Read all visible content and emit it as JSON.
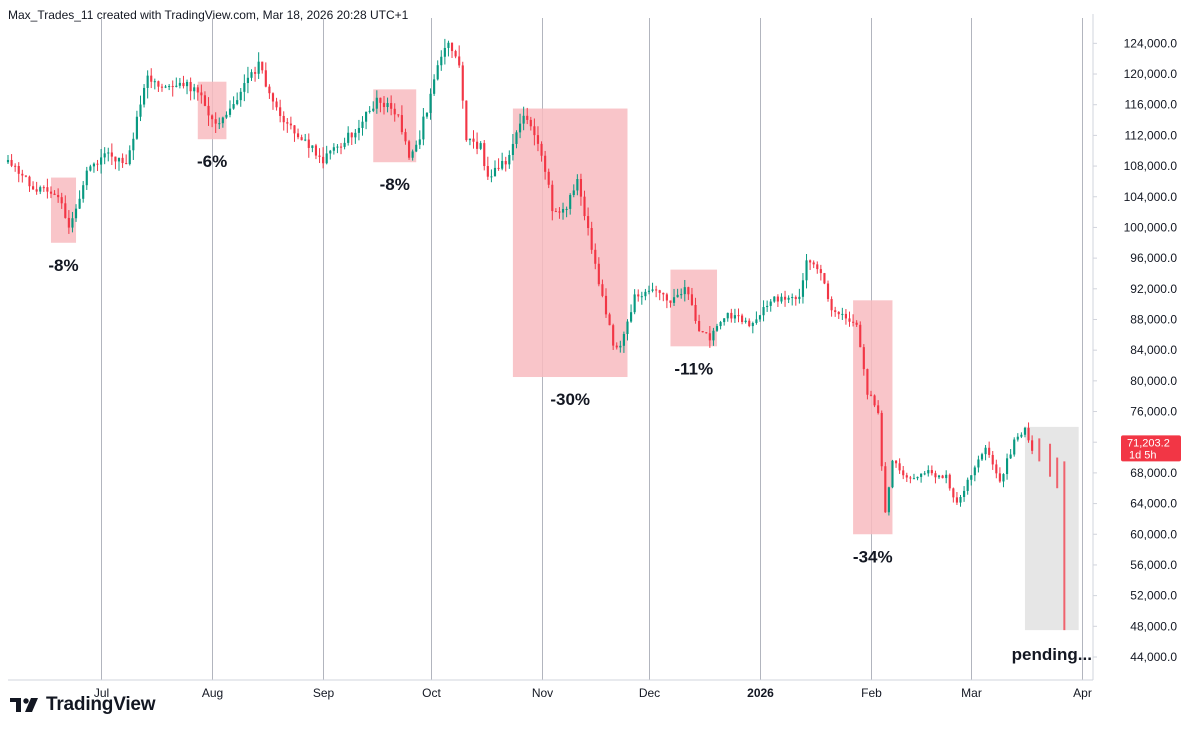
{
  "header": {
    "attribution": "Max_Trades_11 created with TradingView.com, Mar 18, 2026 20:28 UTC+1"
  },
  "brand": {
    "name": "TradingView",
    "logo_icon": "tradingview-logo-icon"
  },
  "price_tag": {
    "price": "71,203.2",
    "countdown": "1d 5h",
    "color": "#f23645"
  },
  "colors": {
    "up": "#089981",
    "down": "#f23645",
    "zone": "#f8bbc0",
    "pending_zone": "#e3e3e3",
    "grid": "#b2b5be"
  },
  "chart_data": {
    "type": "candlestick",
    "title": "",
    "y_axis": {
      "min": 41000,
      "max": 126000,
      "ticks": [
        44000,
        48000,
        52000,
        56000,
        60000,
        64000,
        68000,
        72000,
        76000,
        80000,
        84000,
        88000,
        92000,
        96000,
        100000,
        104000,
        108000,
        112000,
        116000,
        120000,
        124000
      ],
      "tick_labels": [
        "44,000.0",
        "48,000.0",
        "52,000.0",
        "56,000.0",
        "60,000.0",
        "64,000.0",
        "68,000.0",
        "72,000.0",
        "76,000.0",
        "80,000.0",
        "84,000.0",
        "88,000.0",
        "92,000.0",
        "96,000.0",
        "100,000.0",
        "104,000.0",
        "108,000.0",
        "112,000.0",
        "116,000.0",
        "120,000.0",
        "124,000.0"
      ]
    },
    "x_axis": {
      "start": "2025-06-05",
      "end": "2026-04-04",
      "ticks": [
        {
          "label": "Jul",
          "date": "2025-07-01",
          "bold": false
        },
        {
          "label": "Aug",
          "date": "2025-08-01",
          "bold": false
        },
        {
          "label": "Sep",
          "date": "2025-09-01",
          "bold": false
        },
        {
          "label": "Oct",
          "date": "2025-10-01",
          "bold": false
        },
        {
          "label": "Nov",
          "date": "2025-11-01",
          "bold": false
        },
        {
          "label": "Dec",
          "date": "2025-12-01",
          "bold": false
        },
        {
          "label": "2026",
          "date": "2026-01-01",
          "bold": true
        },
        {
          "label": "Feb",
          "date": "2026-02-01",
          "bold": false
        },
        {
          "label": "Mar",
          "date": "2026-03-01",
          "bold": false
        },
        {
          "label": "Apr",
          "date": "2026-04-01",
          "bold": false
        }
      ]
    },
    "anchors": [
      [
        "2025-06-05",
        108500
      ],
      [
        "2025-06-13",
        105000
      ],
      [
        "2025-06-19",
        104500
      ],
      [
        "2025-06-22",
        99500
      ],
      [
        "2025-06-27",
        107000
      ],
      [
        "2025-07-03",
        109500
      ],
      [
        "2025-07-08",
        108500
      ],
      [
        "2025-07-14",
        119500
      ],
      [
        "2025-07-19",
        118000
      ],
      [
        "2025-07-24",
        118500
      ],
      [
        "2025-07-29",
        117500
      ],
      [
        "2025-08-02",
        113000
      ],
      [
        "2025-08-05",
        114500
      ],
      [
        "2025-08-10",
        119000
      ],
      [
        "2025-08-14",
        121000
      ],
      [
        "2025-08-20",
        114000
      ],
      [
        "2025-08-28",
        111000
      ],
      [
        "2025-09-01",
        109000
      ],
      [
        "2025-09-06",
        111000
      ],
      [
        "2025-09-11",
        113000
      ],
      [
        "2025-09-16",
        116500
      ],
      [
        "2025-09-22",
        115000
      ],
      [
        "2025-09-25",
        109000
      ],
      [
        "2025-09-28",
        112000
      ],
      [
        "2025-10-03",
        121000
      ],
      [
        "2025-10-06",
        124500
      ],
      [
        "2025-10-09",
        121000
      ],
      [
        "2025-10-11",
        111500
      ],
      [
        "2025-10-15",
        110500
      ],
      [
        "2025-10-17",
        106500
      ],
      [
        "2025-10-22",
        108500
      ],
      [
        "2025-10-27",
        114500
      ],
      [
        "2025-11-01",
        110000
      ],
      [
        "2025-11-04",
        102500
      ],
      [
        "2025-11-07",
        102000
      ],
      [
        "2025-11-11",
        106000
      ],
      [
        "2025-11-13",
        101500
      ],
      [
        "2025-11-17",
        93000
      ],
      [
        "2025-11-21",
        85000
      ],
      [
        "2025-11-23",
        84500
      ],
      [
        "2025-11-27",
        91000
      ],
      [
        "2025-12-03",
        91500
      ],
      [
        "2025-12-08",
        90500
      ],
      [
        "2025-12-11",
        92500
      ],
      [
        "2025-12-15",
        86500
      ],
      [
        "2025-12-18",
        85500
      ],
      [
        "2025-12-22",
        88500
      ],
      [
        "2025-12-30",
        87500
      ],
      [
        "2026-01-04",
        90500
      ],
      [
        "2026-01-08",
        91000
      ],
      [
        "2026-01-12",
        90500
      ],
      [
        "2026-01-14",
        96000
      ],
      [
        "2026-01-17",
        95000
      ],
      [
        "2026-01-21",
        89500
      ],
      [
        "2026-01-25",
        88500
      ],
      [
        "2026-01-28",
        87500
      ],
      [
        "2026-01-31",
        78500
      ],
      [
        "2026-02-03",
        76000
      ],
      [
        "2026-02-05",
        62500
      ],
      [
        "2026-02-07",
        69500
      ],
      [
        "2026-02-12",
        67000
      ],
      [
        "2026-02-17",
        68000
      ],
      [
        "2026-02-22",
        67500
      ],
      [
        "2026-02-25",
        64000
      ],
      [
        "2026-02-28",
        67000
      ],
      [
        "2026-03-05",
        71500
      ],
      [
        "2026-03-09",
        67000
      ],
      [
        "2026-03-13",
        72000
      ],
      [
        "2026-03-16",
        73500
      ],
      [
        "2026-03-17",
        72500
      ],
      [
        "2026-03-18",
        71203
      ]
    ],
    "projected_ticks": [
      {
        "date": "2026-03-20",
        "high": 72500,
        "low": 69500
      },
      {
        "date": "2026-03-23",
        "high": 71800,
        "low": 67500
      },
      {
        "date": "2026-03-25",
        "high": 70000,
        "low": 66000
      },
      {
        "date": "2026-03-27",
        "high": 69500,
        "low": 47500
      }
    ],
    "zones": [
      {
        "label": "-8%",
        "start": "2025-06-17",
        "end": "2025-06-24",
        "high": 106500,
        "low": 98000,
        "label_pos": "below"
      },
      {
        "label": "-6%",
        "start": "2025-07-28",
        "end": "2025-08-05",
        "high": 119000,
        "low": 111500,
        "label_pos": "below"
      },
      {
        "label": "-8%",
        "start": "2025-09-15",
        "end": "2025-09-27",
        "high": 118000,
        "low": 108500,
        "label_pos": "below"
      },
      {
        "label": "-30%",
        "start": "2025-10-24",
        "end": "2025-11-25",
        "high": 115500,
        "low": 80500,
        "label_pos": "below"
      },
      {
        "label": "-11%",
        "start": "2025-12-07",
        "end": "2025-12-20",
        "high": 94500,
        "low": 84500,
        "label_pos": "below"
      },
      {
        "label": "-34%",
        "start": "2026-01-27",
        "end": "2026-02-07",
        "high": 90500,
        "low": 60000,
        "label_pos": "below"
      }
    ],
    "pending_zone": {
      "label": "pending...",
      "start": "2026-03-16",
      "end": "2026-03-31",
      "high": 74000,
      "low": 47500
    }
  }
}
